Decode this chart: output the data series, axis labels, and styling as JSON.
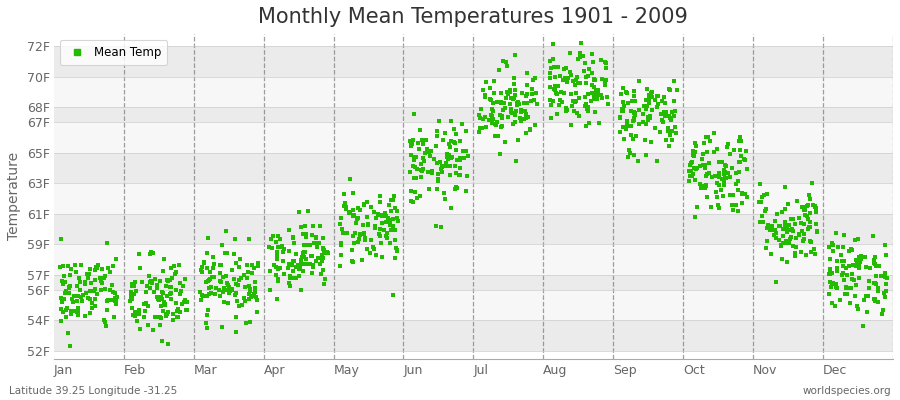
{
  "title": "Monthly Mean Temperatures 1901 - 2009",
  "ylabel": "Temperature",
  "yticks": [
    52,
    54,
    56,
    57,
    59,
    61,
    63,
    65,
    67,
    68,
    70,
    72
  ],
  "ytick_labels": [
    "52F",
    "54F",
    "56F",
    "57F",
    "59F",
    "61F",
    "63F",
    "65F",
    "67F",
    "68F",
    "70F",
    "72F"
  ],
  "ylim": [
    51.5,
    72.8
  ],
  "month_labels": [
    "Jan",
    "Feb",
    "Mar",
    "Apr",
    "May",
    "Jun",
    "Jul",
    "Aug",
    "Sep",
    "Oct",
    "Nov",
    "Dec"
  ],
  "legend_label": "Mean Temp",
  "marker_color": "#22bb00",
  "marker_size": 7,
  "background_color": "#ffffff",
  "band_color_odd": "#ebebeb",
  "band_color_even": "#f7f7f7",
  "title_fontsize": 15,
  "axis_label_fontsize": 10,
  "tick_fontsize": 9,
  "footer_left": "Latitude 39.25 Longitude -31.25",
  "footer_right": "worldspecies.org",
  "monthly_means": [
    55.8,
    55.4,
    56.5,
    58.3,
    60.2,
    64.2,
    68.2,
    69.1,
    67.4,
    63.8,
    60.2,
    57.0
  ],
  "monthly_stds": [
    1.3,
    1.4,
    1.2,
    1.1,
    1.3,
    1.4,
    1.3,
    1.2,
    1.3,
    1.4,
    1.3,
    1.3
  ],
  "n_years": 109
}
